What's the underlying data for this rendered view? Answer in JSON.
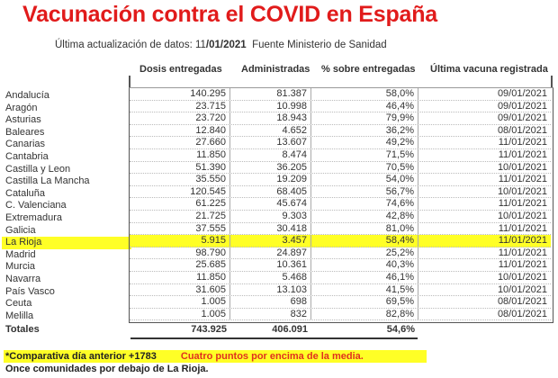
{
  "header": {
    "top_mark": "/\\/\\ / ,\\ / ,\\  • • •",
    "title": "Vacunación contra el COVID en España",
    "update_label": "Última actualización de datos: ",
    "update_date_day": "11",
    "update_date_rest": "/01/2021",
    "source": "Fuente Ministerio de Sanidad"
  },
  "table": {
    "columns": [
      "Dosis entregadas",
      "Administradas",
      "% sobre entregadas",
      "Última vacuna registrada"
    ],
    "highlight_color": "#ffff26",
    "rows": [
      {
        "region": "Andalucía",
        "entregadas": "140.295",
        "administradas": "81.387",
        "pct": "58,0%",
        "ultima": "09/01/2021"
      },
      {
        "region": "Aragón",
        "entregadas": "23.715",
        "administradas": "10.998",
        "pct": "46,4%",
        "ultima": "09/01/2021"
      },
      {
        "region": "Asturias",
        "entregadas": "23.720",
        "administradas": "18.943",
        "pct": "79,9%",
        "ultima": "09/01/2021"
      },
      {
        "region": "Baleares",
        "entregadas": "12.840",
        "administradas": "4.652",
        "pct": "36,2%",
        "ultima": "08/01/2021"
      },
      {
        "region": "Canarias",
        "entregadas": "27.660",
        "administradas": "13.607",
        "pct": "49,2%",
        "ultima": "11/01/2021"
      },
      {
        "region": "Cantabria",
        "entregadas": "11.850",
        "administradas": "8.474",
        "pct": "71,5%",
        "ultima": "11/01/2021"
      },
      {
        "region": "Castilla y Leon",
        "entregadas": "51.390",
        "administradas": "36.205",
        "pct": "70,5%",
        "ultima": "10/01/2021"
      },
      {
        "region": "Castilla La Mancha",
        "entregadas": "35.550",
        "administradas": "19.209",
        "pct": "54,0%",
        "ultima": "11/01/2021"
      },
      {
        "region": "Cataluña",
        "entregadas": "120.545",
        "administradas": "68.405",
        "pct": "56,7%",
        "ultima": "10/01/2021"
      },
      {
        "region": "C. Valenciana",
        "entregadas": "61.225",
        "administradas": "45.674",
        "pct": "74,6%",
        "ultima": "11/01/2021"
      },
      {
        "region": "Extremadura",
        "entregadas": "21.725",
        "administradas": "9.303",
        "pct": "42,8%",
        "ultima": "10/01/2021"
      },
      {
        "region": "Galicia",
        "entregadas": "37.555",
        "administradas": "30.418",
        "pct": "81,0%",
        "ultima": "11/01/2021"
      },
      {
        "region": "La Rioja",
        "entregadas": "5.915",
        "administradas": "3.457",
        "pct": "58,4%",
        "ultima": "11/01/2021",
        "highlight": true
      },
      {
        "region": "Madrid",
        "entregadas": "98.790",
        "administradas": "24.897",
        "pct": "25,2%",
        "ultima": "11/01/2021"
      },
      {
        "region": "Murcia",
        "entregadas": "25.685",
        "administradas": "10.361",
        "pct": "40,3%",
        "ultima": "11/01/2021"
      },
      {
        "region": "Navarra",
        "entregadas": "11.850",
        "administradas": "5.468",
        "pct": "46,1%",
        "ultima": "10/01/2021"
      },
      {
        "region": "País Vasco",
        "entregadas": "31.605",
        "administradas": "13.103",
        "pct": "41,5%",
        "ultima": "10/01/2021"
      },
      {
        "region": "Ceuta",
        "entregadas": "1.005",
        "administradas": "698",
        "pct": "69,5%",
        "ultima": "08/01/2021"
      },
      {
        "region": "Melilla",
        "entregadas": "1.005",
        "administradas": "832",
        "pct": "82,8%",
        "ultima": "08/01/2021"
      }
    ],
    "totals": {
      "label": "Totales",
      "entregadas": "743.925",
      "administradas": "406.091",
      "pct": "54,6%"
    }
  },
  "notes": {
    "comparativa": "*Comparativa día anterior +1783",
    "media": "Cuatro puntos por encima de la media.",
    "comunidades": "Once comunidades por debajo de La Rioja."
  }
}
